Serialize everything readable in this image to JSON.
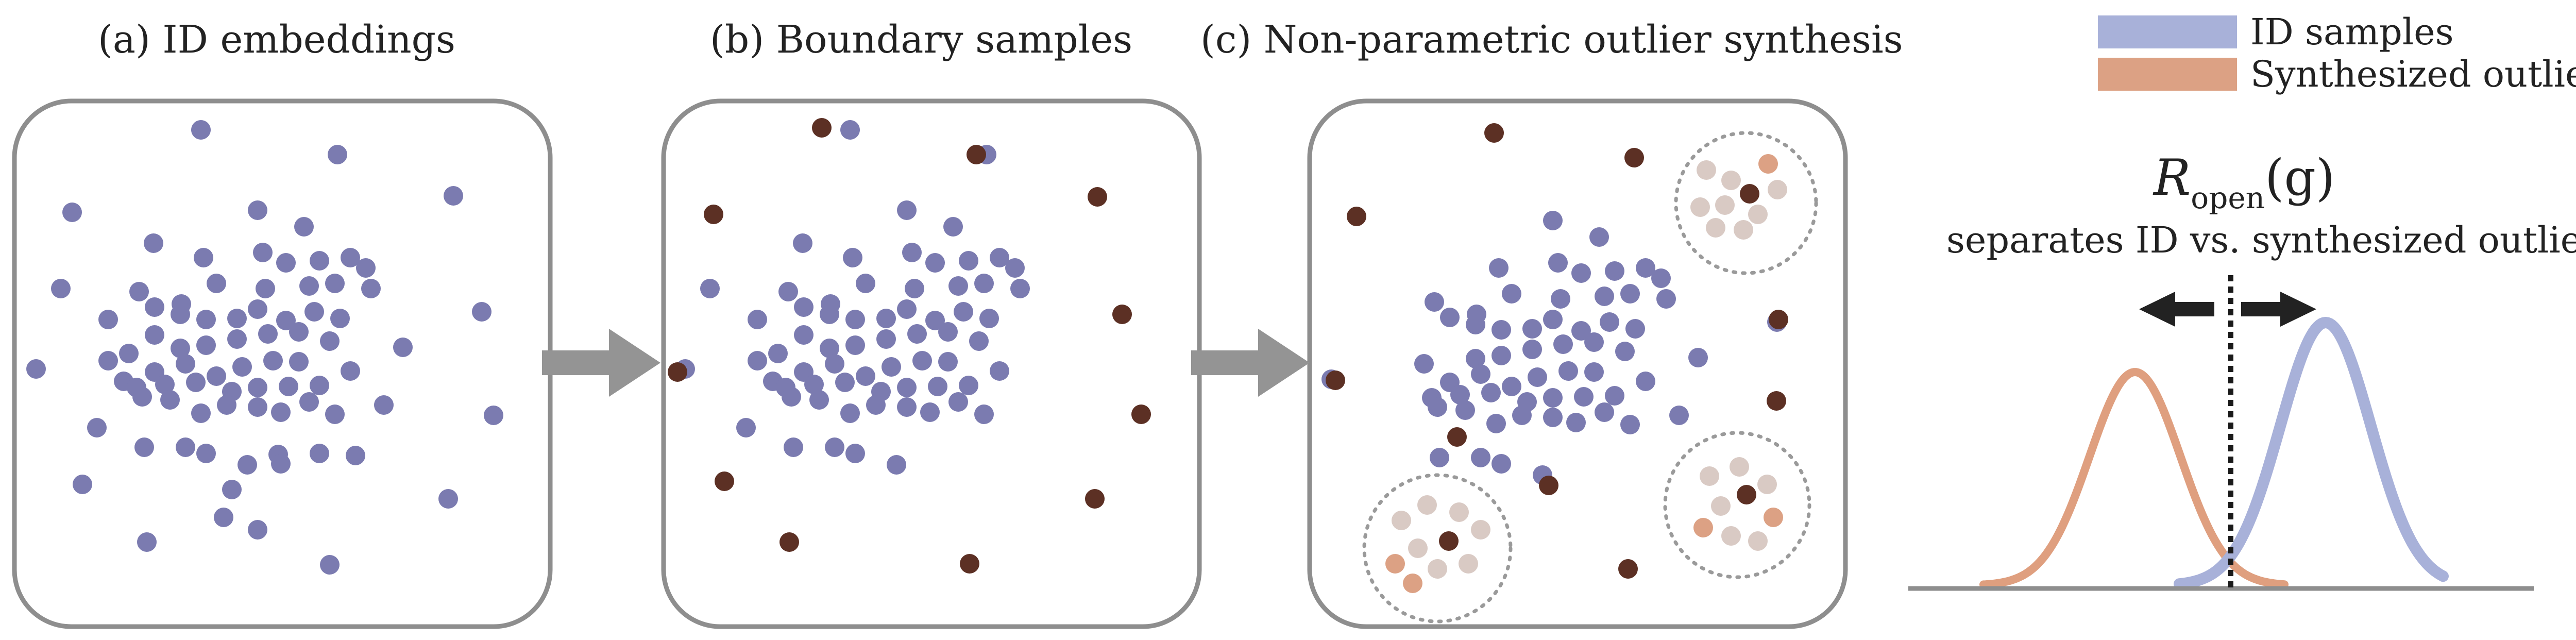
{
  "titles": {
    "panel_a": "(a) ID embeddings",
    "panel_b": "(b) Boundary samples",
    "panel_c": "(c) Non-parametric outlier synthesis"
  },
  "legend": {
    "id_label": "ID samples",
    "outlier_label": "Synthesized outliers"
  },
  "math": {
    "r_main": "R",
    "r_sub": "open",
    "r_arg": "(g)"
  },
  "separator_caption": "separates ID vs. synthesized outliers",
  "colors": {
    "id_point": "#7b7bb0",
    "boundary_point": "#5c3024",
    "synthesized_outlier": "#dca184",
    "candidate_faded": "#d9cac4",
    "id_curve": "#a8b1d9",
    "outlier_curve": "#df9f7f",
    "panel_border": "#8e8e8e",
    "arrow": "#949494"
  }
}
